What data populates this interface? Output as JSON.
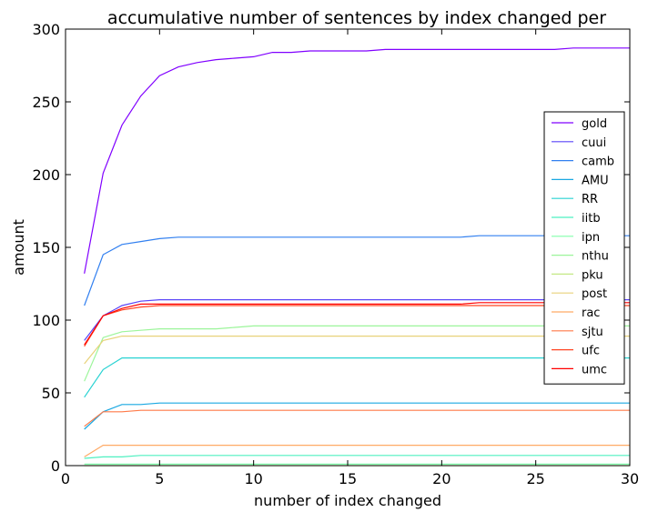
{
  "chart_data": {
    "type": "line",
    "title": "accumulative number of sentences by index changed per",
    "xlabel": "number of index changed",
    "ylabel": "amount",
    "xlim": [
      0,
      30
    ],
    "ylim": [
      0,
      300
    ],
    "xticks": [
      "0",
      "5",
      "10",
      "15",
      "20",
      "25",
      "30"
    ],
    "yticks": [
      "0",
      "50",
      "100",
      "150",
      "200",
      "250",
      "300"
    ],
    "grid": false,
    "legend_position": "right",
    "x": [
      1,
      2,
      3,
      4,
      5,
      6,
      7,
      8,
      9,
      10,
      11,
      12,
      13,
      14,
      15,
      16,
      17,
      18,
      19,
      20,
      21,
      22,
      23,
      24,
      25,
      26,
      27,
      28,
      29,
      30
    ],
    "series": [
      {
        "name": "gold",
        "color": "#8000ff",
        "values": [
          132,
          201,
          234,
          254,
          268,
          274,
          277,
          279,
          280,
          281,
          284,
          284,
          285,
          285,
          285,
          285,
          286,
          286,
          286,
          286,
          286,
          286,
          286,
          286,
          286,
          286,
          287,
          287,
          287,
          287
        ]
      },
      {
        "name": "cuui",
        "color": "#5a45f8",
        "values": [
          86,
          103,
          110,
          113,
          114,
          114,
          114,
          114,
          114,
          114,
          114,
          114,
          114,
          114,
          114,
          114,
          114,
          114,
          114,
          114,
          114,
          114,
          114,
          114,
          114,
          114,
          114,
          114,
          114,
          114
        ]
      },
      {
        "name": "camb",
        "color": "#3280f0",
        "values": [
          110,
          145,
          152,
          154,
          156,
          157,
          157,
          157,
          157,
          157,
          157,
          157,
          157,
          157,
          157,
          157,
          157,
          157,
          157,
          157,
          157,
          158,
          158,
          158,
          158,
          158,
          158,
          158,
          158,
          158
        ]
      },
      {
        "name": "AMU",
        "color": "#1aa8e2",
        "values": [
          25,
          37,
          42,
          42,
          43,
          43,
          43,
          43,
          43,
          43,
          43,
          43,
          43,
          43,
          43,
          43,
          43,
          43,
          43,
          43,
          43,
          43,
          43,
          43,
          43,
          43,
          43,
          43,
          43,
          43
        ]
      },
      {
        "name": "RR",
        "color": "#28d2d2",
        "values": [
          47,
          66,
          74,
          74,
          74,
          74,
          74,
          74,
          74,
          74,
          74,
          74,
          74,
          74,
          74,
          74,
          74,
          74,
          74,
          74,
          74,
          74,
          74,
          74,
          74,
          74,
          74,
          74,
          74,
          74
        ]
      },
      {
        "name": "iitb",
        "color": "#4ef0c0",
        "values": [
          5,
          6,
          6,
          7,
          7,
          7,
          7,
          7,
          7,
          7,
          7,
          7,
          7,
          7,
          7,
          7,
          7,
          7,
          7,
          7,
          7,
          7,
          7,
          7,
          7,
          7,
          7,
          7,
          7,
          7
        ]
      },
      {
        "name": "ipn",
        "color": "#80ffaa",
        "values": [
          1,
          1,
          1,
          1,
          1,
          1,
          1,
          1,
          1,
          1,
          1,
          1,
          1,
          1,
          1,
          1,
          1,
          1,
          1,
          1,
          1,
          1,
          1,
          1,
          1,
          1,
          1,
          1,
          1,
          1
        ]
      },
      {
        "name": "nthu",
        "color": "#9cf59a",
        "values": [
          58,
          88,
          92,
          93,
          94,
          94,
          94,
          94,
          95,
          96,
          96,
          96,
          96,
          96,
          96,
          96,
          96,
          96,
          96,
          96,
          96,
          96,
          96,
          96,
          96,
          96,
          96,
          96,
          96,
          96
        ]
      },
      {
        "name": "pku",
        "color": "#c4e885",
        "values": [
          0,
          0,
          0,
          0,
          0,
          0,
          0,
          0,
          0,
          0,
          0,
          0,
          0,
          0,
          0,
          0,
          0,
          0,
          0,
          0,
          0,
          0,
          0,
          0,
          0,
          0,
          0,
          0,
          0,
          0
        ]
      },
      {
        "name": "post",
        "color": "#e8d27a",
        "values": [
          70,
          86,
          89,
          89,
          89,
          89,
          89,
          89,
          89,
          89,
          89,
          89,
          89,
          89,
          89,
          89,
          89,
          89,
          89,
          89,
          89,
          89,
          89,
          89,
          89,
          89,
          89,
          89,
          89,
          89
        ]
      },
      {
        "name": "rac",
        "color": "#ffaa66",
        "values": [
          6,
          14,
          14,
          14,
          14,
          14,
          14,
          14,
          14,
          14,
          14,
          14,
          14,
          14,
          14,
          14,
          14,
          14,
          14,
          14,
          14,
          14,
          14,
          14,
          14,
          14,
          14,
          14,
          14,
          14
        ]
      },
      {
        "name": "sjtu",
        "color": "#ff7a48",
        "values": [
          27,
          37,
          37,
          38,
          38,
          38,
          38,
          38,
          38,
          38,
          38,
          38,
          38,
          38,
          38,
          38,
          38,
          38,
          38,
          38,
          38,
          38,
          38,
          38,
          38,
          38,
          38,
          38,
          38,
          38
        ]
      },
      {
        "name": "ufc",
        "color": "#ff4522",
        "values": [
          82,
          103,
          107,
          109,
          110,
          110,
          110,
          110,
          110,
          110,
          110,
          110,
          110,
          110,
          110,
          110,
          110,
          110,
          110,
          110,
          110,
          110,
          110,
          110,
          110,
          110,
          110,
          110,
          110,
          110
        ]
      },
      {
        "name": "umc",
        "color": "#ff0000",
        "values": [
          83,
          103,
          108,
          111,
          111,
          111,
          111,
          111,
          111,
          111,
          111,
          111,
          111,
          111,
          111,
          111,
          111,
          111,
          111,
          111,
          111,
          112,
          112,
          112,
          112,
          112,
          112,
          112,
          112,
          112
        ]
      }
    ]
  }
}
